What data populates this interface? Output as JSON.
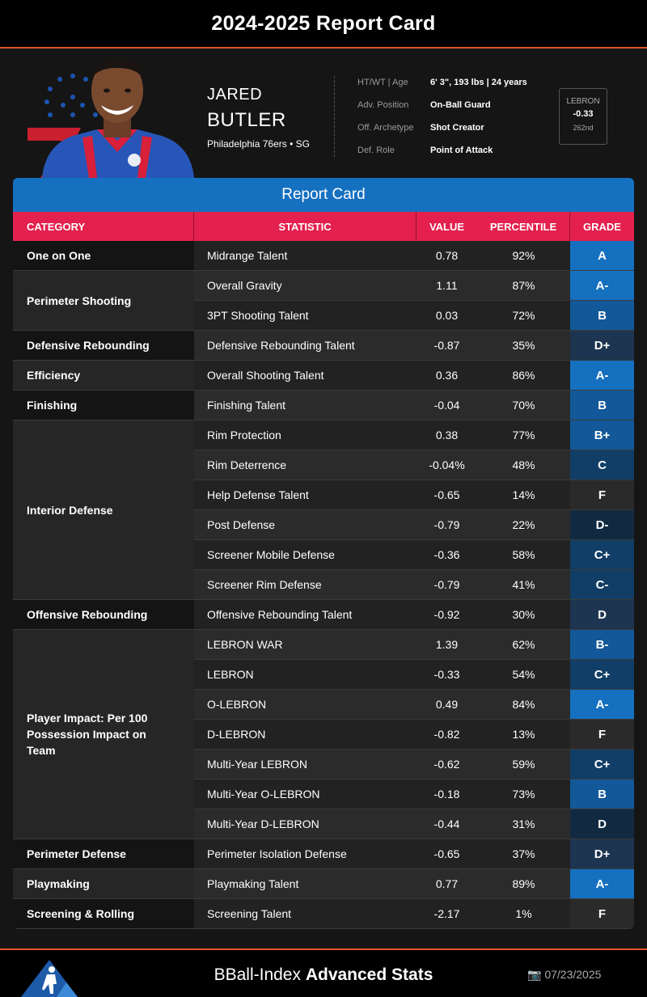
{
  "title": "2024-2025 Report Card",
  "player": {
    "first_name": "JARED",
    "last_name": "BUTLER",
    "team_line": "Philadelphia 76ers • SG",
    "info": [
      {
        "label": "HT/WT | Age",
        "value": "6' 3\", 193 lbs | 24 years"
      },
      {
        "label": "Adv. Position",
        "value": "On-Ball Guard"
      },
      {
        "label": "Off. Archetype",
        "value": "Shot Creator"
      },
      {
        "label": "Def. Role",
        "value": "Point of Attack"
      }
    ],
    "lebron": {
      "label": "LEBRON",
      "value": "-0.33",
      "rank": "262nd"
    }
  },
  "report": {
    "header": "Report Card",
    "columns": [
      "CATEGORY",
      "STATISTIC",
      "VALUE",
      "PERCENTILE",
      "GRADE"
    ],
    "categories": [
      {
        "name": "One on One",
        "rows": 1
      },
      {
        "name": "Perimeter Shooting",
        "rows": 2
      },
      {
        "name": "Defensive Rebounding",
        "rows": 1
      },
      {
        "name": "Efficiency",
        "rows": 1
      },
      {
        "name": "Finishing",
        "rows": 1
      },
      {
        "name": "Interior Defense",
        "rows": 6
      },
      {
        "name": "Offensive Rebounding",
        "rows": 1
      },
      {
        "name": "Player Impact: Per 100 Possession Impact on Team",
        "rows": 7
      },
      {
        "name": "Perimeter Defense",
        "rows": 1
      },
      {
        "name": "Playmaking",
        "rows": 1
      },
      {
        "name": "Screening & Rolling",
        "rows": 1
      }
    ],
    "rows": [
      {
        "stat": "Midrange Talent",
        "value": "0.78",
        "percentile": "92%",
        "grade": "A",
        "color": "#1570c0"
      },
      {
        "stat": "Overall Gravity",
        "value": "1.11",
        "percentile": "87%",
        "grade": "A-",
        "color": "#1570c0"
      },
      {
        "stat": "3PT Shooting Talent",
        "value": "0.03",
        "percentile": "72%",
        "grade": "B",
        "color": "#135898"
      },
      {
        "stat": "Defensive Rebounding Talent",
        "value": "-0.87",
        "percentile": "35%",
        "grade": "D+",
        "color": "#1d3550"
      },
      {
        "stat": "Overall Shooting Talent",
        "value": "0.36",
        "percentile": "86%",
        "grade": "A-",
        "color": "#1570c0"
      },
      {
        "stat": "Finishing Talent",
        "value": "-0.04",
        "percentile": "70%",
        "grade": "B",
        "color": "#135898"
      },
      {
        "stat": "Rim Protection",
        "value": "0.38",
        "percentile": "77%",
        "grade": "B+",
        "color": "#135898"
      },
      {
        "stat": "Rim Deterrence",
        "value": "-0.04%",
        "percentile": "48%",
        "grade": "C",
        "color": "#113e66"
      },
      {
        "stat": "Help Defense Talent",
        "value": "-0.65",
        "percentile": "14%",
        "grade": "F",
        "color": "#2a2a2a"
      },
      {
        "stat": "Post Defense",
        "value": "-0.79",
        "percentile": "22%",
        "grade": "D-",
        "color": "#112a42"
      },
      {
        "stat": "Screener Mobile Defense",
        "value": "-0.36",
        "percentile": "58%",
        "grade": "C+",
        "color": "#113e66"
      },
      {
        "stat": "Screener Rim Defense",
        "value": "-0.79",
        "percentile": "41%",
        "grade": "C-",
        "color": "#113e66"
      },
      {
        "stat": "Offensive Rebounding Talent",
        "value": "-0.92",
        "percentile": "30%",
        "grade": "D",
        "color": "#1d3550"
      },
      {
        "stat": "LEBRON WAR",
        "value": "1.39",
        "percentile": "62%",
        "grade": "B-",
        "color": "#135898"
      },
      {
        "stat": "LEBRON",
        "value": "-0.33",
        "percentile": "54%",
        "grade": "C+",
        "color": "#113e66"
      },
      {
        "stat": "O-LEBRON",
        "value": "0.49",
        "percentile": "84%",
        "grade": "A-",
        "color": "#1570c0"
      },
      {
        "stat": "D-LEBRON",
        "value": "-0.82",
        "percentile": "13%",
        "grade": "F",
        "color": "#2a2a2a"
      },
      {
        "stat": "Multi-Year LEBRON",
        "value": "-0.62",
        "percentile": "59%",
        "grade": "C+",
        "color": "#113e66"
      },
      {
        "stat": "Multi-Year O-LEBRON",
        "value": "-0.18",
        "percentile": "73%",
        "grade": "B",
        "color": "#135898"
      },
      {
        "stat": "Multi-Year D-LEBRON",
        "value": "-0.44",
        "percentile": "31%",
        "grade": "D",
        "color": "#112a42"
      },
      {
        "stat": "Perimeter Isolation Defense",
        "value": "-0.65",
        "percentile": "37%",
        "grade": "D+",
        "color": "#1d3550"
      },
      {
        "stat": "Playmaking Talent",
        "value": "0.77",
        "percentile": "89%",
        "grade": "A-",
        "color": "#1570c0"
      },
      {
        "stat": "Screening Talent",
        "value": "-2.17",
        "percentile": "1%",
        "grade": "F",
        "color": "#2a2a2a"
      }
    ]
  },
  "footer": {
    "brand_light": "BBall-Index",
    "brand_bold": "Advanced Stats",
    "date": "07/23/2025",
    "camera_icon": "📷"
  }
}
